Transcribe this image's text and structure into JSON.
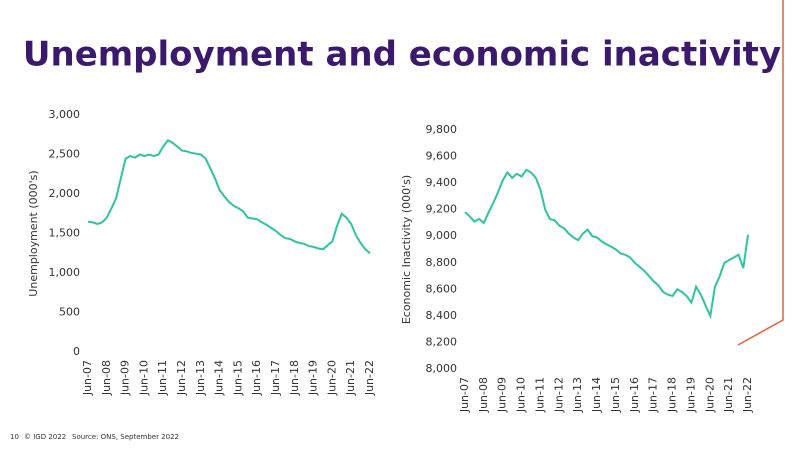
{
  "slide": {
    "title": "Unemployment and economic inactivity",
    "page_number": "10",
    "copyright": "© IGD 2022",
    "source": "Source: ONS, September 2022"
  },
  "chart_data": [
    {
      "type": "line",
      "y_label": "Unemployment (000's)",
      "color": "#2ec4a0",
      "grid": false,
      "categories": [
        "Jun-07",
        null,
        null,
        null,
        "Jun-08",
        null,
        null,
        null,
        "Jun-09",
        null,
        null,
        null,
        "Jun-10",
        null,
        null,
        null,
        "Jun-11",
        null,
        null,
        null,
        "Jun-12",
        null,
        null,
        null,
        "Jun-13",
        null,
        null,
        null,
        "Jun-14",
        null,
        null,
        null,
        "Jun-15",
        null,
        null,
        null,
        "Jun-16",
        null,
        null,
        null,
        "Jun-17",
        null,
        null,
        null,
        "Jun-18",
        null,
        null,
        null,
        "Jun-19",
        null,
        null,
        null,
        "Jun-20",
        null,
        null,
        null,
        "Jun-21",
        null,
        null,
        null,
        "Jun-22"
      ],
      "values": [
        1650,
        1640,
        1620,
        1640,
        1700,
        1820,
        1950,
        2200,
        2450,
        2480,
        2460,
        2500,
        2480,
        2500,
        2480,
        2500,
        2600,
        2680,
        2650,
        2600,
        2550,
        2540,
        2520,
        2510,
        2500,
        2450,
        2330,
        2200,
        2050,
        1970,
        1900,
        1850,
        1820,
        1780,
        1700,
        1690,
        1680,
        1640,
        1610,
        1570,
        1530,
        1480,
        1440,
        1430,
        1400,
        1380,
        1370,
        1340,
        1330,
        1310,
        1300,
        1350,
        1400,
        1600,
        1750,
        1700,
        1620,
        1480,
        1380,
        1300,
        1250
      ],
      "ylim": [
        0,
        3000
      ],
      "yticks": [
        0,
        500,
        {
          "value": 1000,
          "label": "1,000"
        },
        {
          "value": 1500,
          "label": "1,500"
        },
        {
          "value": 2000,
          "label": "2,000"
        },
        {
          "value": 2500,
          "label": "2,500"
        },
        {
          "value": 3000,
          "label": "3,000"
        }
      ]
    },
    {
      "type": "line",
      "y_label": "Economic Inactivity (000's)",
      "color": "#2ec4a0",
      "grid": false,
      "categories": [
        "Jun-07",
        null,
        null,
        null,
        "Jun-08",
        null,
        null,
        null,
        "Jun-09",
        null,
        null,
        null,
        "Jun-10",
        null,
        null,
        null,
        "Jun-11",
        null,
        null,
        null,
        "Jun-12",
        null,
        null,
        null,
        "Jun-13",
        null,
        null,
        null,
        "Jun-14",
        null,
        null,
        null,
        "Jun-15",
        null,
        null,
        null,
        "Jun-16",
        null,
        null,
        null,
        "Jun-17",
        null,
        null,
        null,
        "Jun-18",
        null,
        null,
        null,
        "Jun-19",
        null,
        null,
        null,
        "Jun-20",
        null,
        null,
        null,
        "Jun-21",
        null,
        null,
        null,
        "Jun-22"
      ],
      "values": [
        9180,
        9150,
        9110,
        9130,
        9100,
        9180,
        9250,
        9330,
        9420,
        9480,
        9440,
        9470,
        9450,
        9500,
        9480,
        9440,
        9350,
        9200,
        9130,
        9120,
        9080,
        9060,
        9020,
        8990,
        8970,
        9020,
        9050,
        9000,
        8990,
        8960,
        8940,
        8920,
        8900,
        8870,
        8860,
        8840,
        8800,
        8770,
        8740,
        8700,
        8660,
        8630,
        8580,
        8560,
        8550,
        8600,
        8580,
        8550,
        8500,
        8620,
        8560,
        8480,
        8400,
        8620,
        8700,
        8800,
        8820,
        8840,
        8860,
        8760,
        9010
      ],
      "ylim": [
        8000,
        9800
      ],
      "yticks": [
        {
          "value": 8000,
          "label": "8,000"
        },
        {
          "value": 8200,
          "label": "8,200"
        },
        {
          "value": 8400,
          "label": "8,400"
        },
        {
          "value": 8600,
          "label": "8,600"
        },
        {
          "value": 8800,
          "label": "8,800"
        },
        {
          "value": 9000,
          "label": "9,000"
        },
        {
          "value": 9200,
          "label": "9,200"
        },
        {
          "value": 9400,
          "label": "9,400"
        },
        {
          "value": 9600,
          "label": "9,600"
        },
        {
          "value": 9800,
          "label": "9,800"
        }
      ]
    }
  ]
}
